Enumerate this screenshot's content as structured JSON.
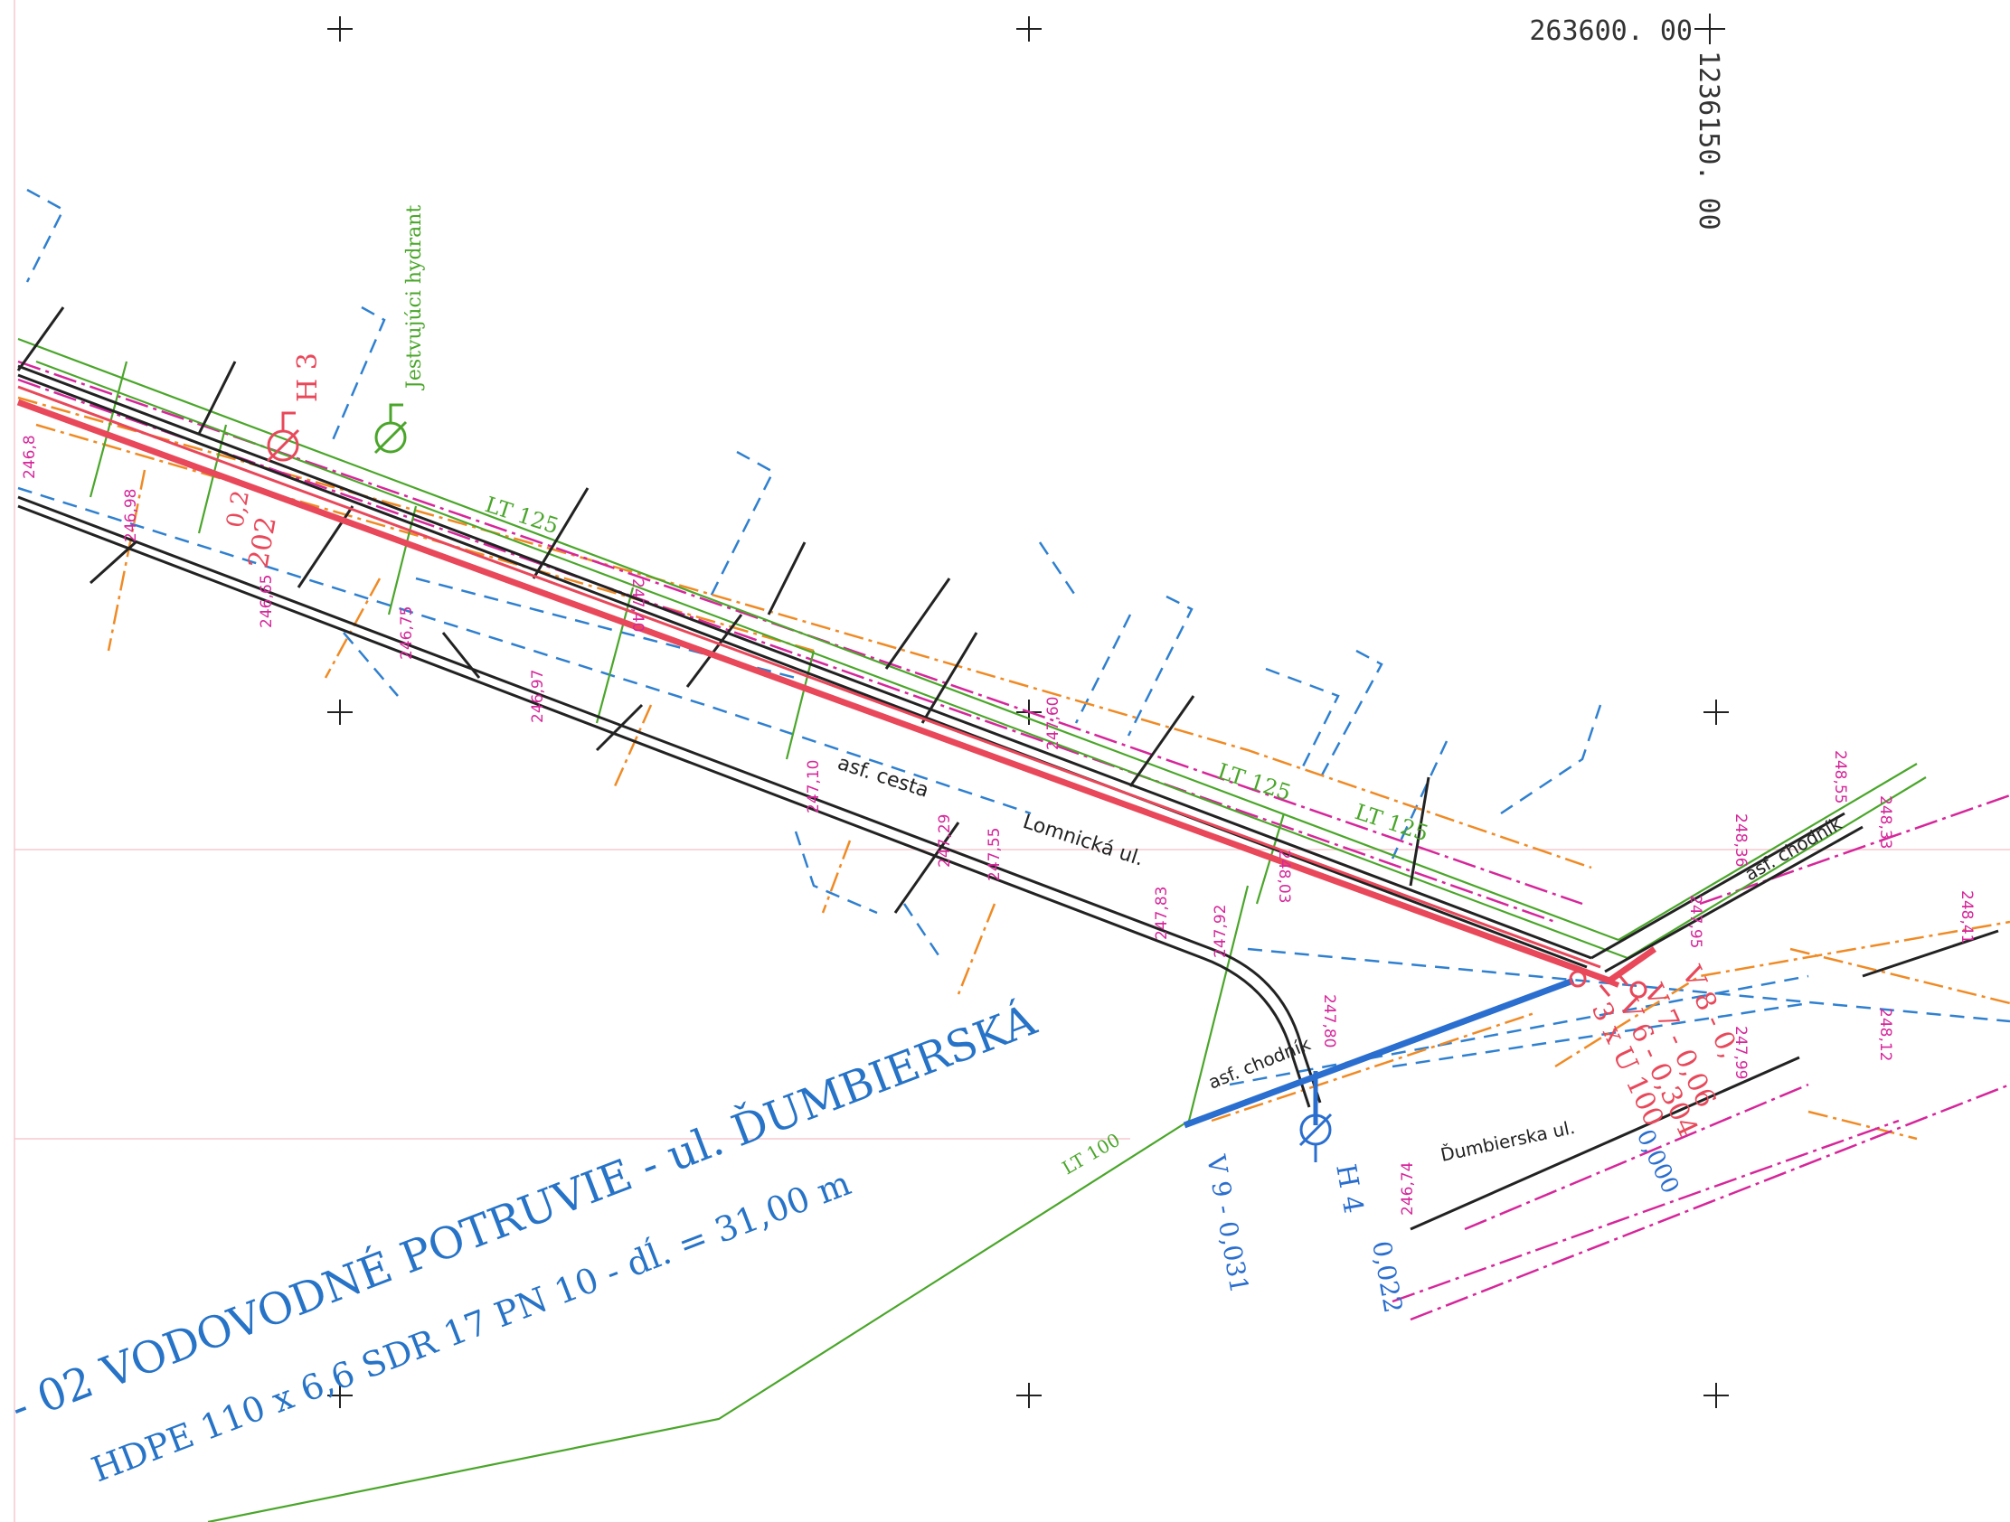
{
  "coords": {
    "easting": "263600. 00",
    "northing": "1236150. 00"
  },
  "title": {
    "line1": "- 02 VODOVODNÉ POTRUVIE - ul. ĎUMBIERSKÁ",
    "line2": "HDPE   110 x 6,6   SDR 17  PN 10 - dĺ. = 31,00 m"
  },
  "labels": {
    "existing_hydrant": "Jestvujúci hydrant",
    "h3": "H 3",
    "h4": "H 4",
    "h4_value": "0,022",
    "v9": "V 9 - 0,031",
    "v8": "V 8 - 0,",
    "v7": "V 7 - 0,06",
    "v6": "V 6 - 0,304",
    "pipe_ref": "3 x U 100",
    "zero": "0,000",
    "val_202": "202",
    "val_02": "0,2",
    "lt125_a": "LT 125",
    "lt125_b": "LT 125",
    "lt125_c": "LT 125",
    "lt100": "LT 100",
    "asf_cesta": "asf. cesta",
    "lomnicka": "Lomnická ul.",
    "asf_chodnik_a": "asf. chodník",
    "asf_chodnik_b": "asf. chodník",
    "dumbierska": "Ďumbierska ul."
  },
  "spot_heights": [
    "246,8",
    "246,98",
    "246,65",
    "246,75",
    "246,97",
    "247,10",
    "247,29",
    "247,55",
    "247,83",
    "247,92",
    "247,60",
    "248,03",
    "248,12",
    "248,33",
    "248,41",
    "248,36",
    "248,55",
    "247,99",
    "247,95",
    "246,74",
    "247,80",
    "247,40"
  ],
  "colors": {
    "new_pipe": "#e8485a",
    "branch_pipe": "#2a6ecf",
    "existing_water": "#4aa62a",
    "magenta_utility": "#d6269a",
    "orange_utility": "#f08a24",
    "blue_utility": "#2f80d0",
    "road_edge": "#222222",
    "title_blue": "#2673c7"
  }
}
